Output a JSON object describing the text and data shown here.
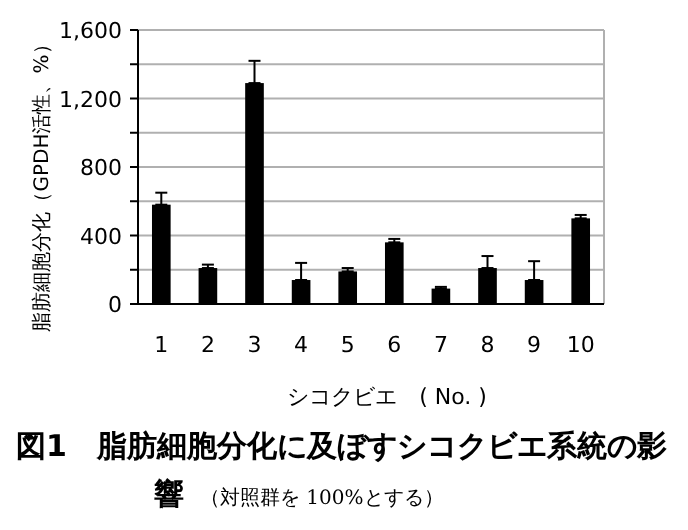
{
  "chart_data": {
    "type": "bar",
    "title": "図1　脂肪細胞分化に及ぼすシコクビエ系統の影響",
    "subtitle": "（対照群を 100%とする）",
    "xlabel": "シコクビエ　( No. )",
    "ylabel": "脂肪細胞分化（GPDH活性、%）",
    "categories": [
      "1",
      "2",
      "3",
      "4",
      "5",
      "6",
      "7",
      "8",
      "9",
      "10"
    ],
    "series": [
      {
        "color": "#000000",
        "values": [
          580,
          210,
          1290,
          140,
          190,
          360,
          90,
          210,
          140,
          500
        ],
        "errors": [
          [
            580,
            650
          ],
          [
            210,
            230
          ],
          [
            1290,
            1420
          ],
          [
            140,
            240
          ],
          [
            190,
            210
          ],
          [
            360,
            380
          ],
          [
            90,
            100
          ],
          [
            210,
            280
          ],
          [
            140,
            250
          ],
          [
            500,
            520
          ]
        ]
      }
    ],
    "ylim": [
      0,
      1600
    ],
    "yticks": [
      0,
      {
        "value": 200,
        "label": null
      },
      400,
      {
        "value": 600,
        "label": null
      },
      800,
      {
        "value": 1000,
        "label": null
      },
      {
        "value": 1200,
        "label": "1,200"
      },
      {
        "value": 1400,
        "label": null
      },
      {
        "value": 1600,
        "label": "1,600"
      }
    ],
    "grid": "y"
  }
}
